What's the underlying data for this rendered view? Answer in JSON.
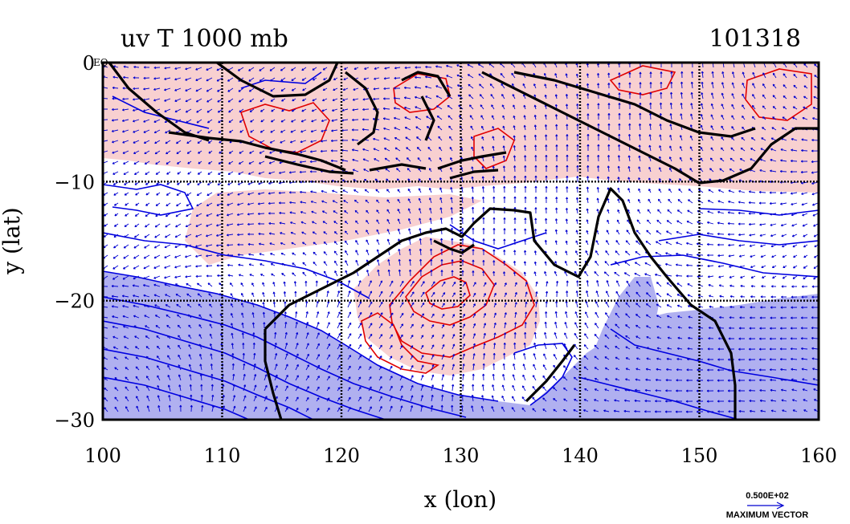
{
  "chart_data": {
    "type": "contour",
    "title": "uv T 1000 mb",
    "id_label": "101318",
    "xlabel": "x (lon)",
    "ylabel": "y (lat)",
    "xlim": [
      100,
      160
    ],
    "ylim": [
      -30,
      0
    ],
    "xticks": [
      100,
      110,
      120,
      130,
      140,
      150,
      160
    ],
    "yticks": [
      0,
      -10,
      -20,
      -30
    ],
    "ytick_labels": [
      "0",
      "−10",
      "−20",
      "−30"
    ],
    "corner_label": "EQ",
    "grid": true,
    "colors": {
      "warm_fill": "#f8d0d0",
      "cool_fill": "#b0b0f0",
      "warm_contour": "#e00000",
      "cool_contour": "#0000e0",
      "wind_vector": "#0000d0",
      "coastline": "#000000"
    },
    "reference_vector": {
      "value_label": "0.500E+02",
      "caption": "MAXIMUM VECTOR"
    }
  }
}
